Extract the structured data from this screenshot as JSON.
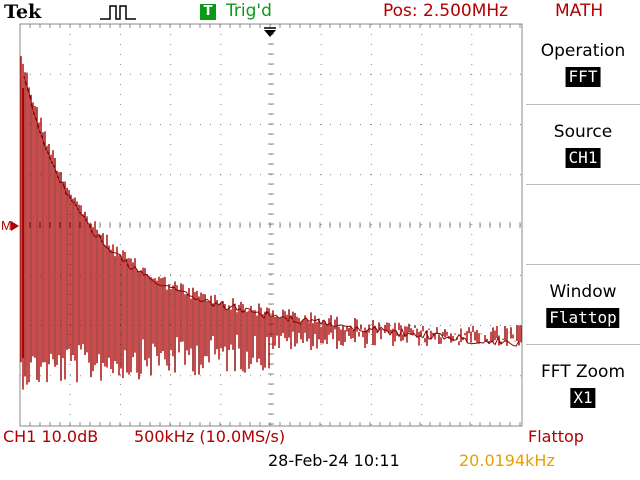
{
  "header": {
    "brand": "Tek",
    "trigger_icon_text": "T",
    "trigger_status": "Trig'd",
    "position": "Pos: 2.500MHz",
    "menu_title": "MATH"
  },
  "menu": {
    "items": [
      {
        "label": "Operation",
        "value": "FFT"
      },
      {
        "label": "Source",
        "value": "CH1"
      },
      {
        "label": "",
        "value": ""
      },
      {
        "label": "Window",
        "value": "Flattop"
      },
      {
        "label": "FFT Zoom",
        "value": "X1"
      }
    ]
  },
  "footer": {
    "channel_scale": "CH1 10.0dB",
    "timebase": "500kHz (10.0MS/s)",
    "window": "Flattop",
    "datetime": "28-Feb-24 10:11",
    "frequency": "20.0194kHz"
  },
  "display": {
    "marker_label": "M",
    "colors": {
      "trace": "#b00000",
      "trace_dark": "#8b0000",
      "grid": "#888888",
      "trigger": "#0a9a1a",
      "freq": "#e8a000"
    },
    "icons": {
      "trigger_position": "down-arrow-icon",
      "trigger_pulse": "pulse-icon",
      "math_marker": "right-arrow-icon"
    }
  }
}
